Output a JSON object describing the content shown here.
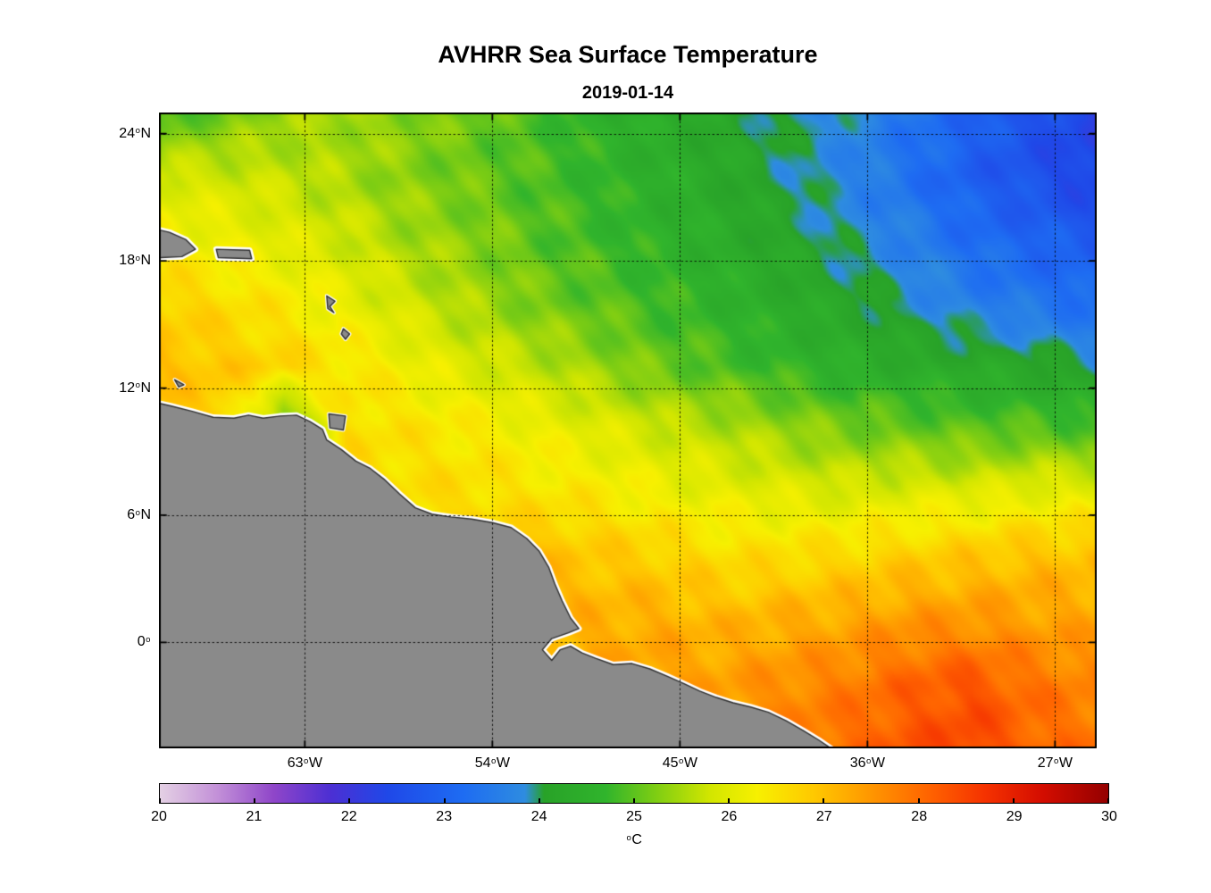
{
  "chart_data": {
    "type": "heatmap",
    "title": "AVHRR Sea Surface Temperature",
    "subtitle": "2019-01-14",
    "grid_on": true,
    "x_axis": {
      "range": [
        -70,
        -25
      ],
      "ticks": [
        {
          "deg": "63",
          "sup": "o",
          "hem": "W",
          "lon": -63
        },
        {
          "deg": "54",
          "sup": "o",
          "hem": "W",
          "lon": -54
        },
        {
          "deg": "45",
          "sup": "o",
          "hem": "W",
          "lon": -45
        },
        {
          "deg": "36",
          "sup": "o",
          "hem": "W",
          "lon": -36
        },
        {
          "deg": "27",
          "sup": "o",
          "hem": "W",
          "lon": -27
        }
      ]
    },
    "y_axis": {
      "range": [
        -5,
        25
      ],
      "ticks": [
        {
          "deg": "24",
          "sup": "o",
          "hem": "N",
          "lat": 24
        },
        {
          "deg": "18",
          "sup": "o",
          "hem": "N",
          "lat": 18
        },
        {
          "deg": "12",
          "sup": "o",
          "hem": "N",
          "lat": 12
        },
        {
          "deg": "6",
          "sup": "o",
          "hem": "N",
          "lat": 6
        },
        {
          "deg": "0",
          "sup": "o",
          "hem": "",
          "lat": 0
        }
      ]
    },
    "colorbar": {
      "orientation": "horizontal",
      "range": [
        20,
        30
      ],
      "unit_sup": "o",
      "unit_text": "C",
      "ticks": [
        "20",
        "21",
        "22",
        "23",
        "24",
        "25",
        "26",
        "27",
        "28",
        "29",
        "30"
      ],
      "stops": [
        {
          "v": 20.0,
          "c": "#E4D0E4"
        },
        {
          "v": 20.6,
          "c": "#C391D8"
        },
        {
          "v": 21.2,
          "c": "#8F46C9"
        },
        {
          "v": 21.8,
          "c": "#4C2FD3"
        },
        {
          "v": 22.4,
          "c": "#1F48E8"
        },
        {
          "v": 23.2,
          "c": "#1E6CF2"
        },
        {
          "v": 23.85,
          "c": "#2E8CE0"
        },
        {
          "v": 24.05,
          "c": "#28A228"
        },
        {
          "v": 24.7,
          "c": "#30B42C"
        },
        {
          "v": 25.2,
          "c": "#7ACC14"
        },
        {
          "v": 25.8,
          "c": "#D2E600"
        },
        {
          "v": 26.3,
          "c": "#F7F000"
        },
        {
          "v": 26.9,
          "c": "#FFC800"
        },
        {
          "v": 27.5,
          "c": "#FF9600"
        },
        {
          "v": 28.1,
          "c": "#FF6400"
        },
        {
          "v": 28.7,
          "c": "#F53200"
        },
        {
          "v": 29.3,
          "c": "#D40D00"
        },
        {
          "v": 30.0,
          "c": "#940000"
        }
      ]
    },
    "land_color": "#8A8A8A",
    "coast_outline": "#2E2E2E",
    "coast_halo": "#FFFFFF",
    "sst_grid": {
      "lons": [
        -70,
        -67,
        -64,
        -61,
        -58,
        -55,
        -52,
        -49,
        -46,
        -43,
        -40,
        -37,
        -34,
        -31,
        -28,
        -25
      ],
      "lats": [
        25,
        22,
        19,
        16,
        13,
        10,
        7,
        4,
        1,
        -2,
        -5
      ],
      "values": [
        [
          24.8,
          25.1,
          25.4,
          25.5,
          25.3,
          25.1,
          24.9,
          24.6,
          24.4,
          24.2,
          24.0,
          23.8,
          23.4,
          23.0,
          22.6,
          22.3
        ],
        [
          25.9,
          25.8,
          25.7,
          25.5,
          25.3,
          25.1,
          24.9,
          24.7,
          24.5,
          24.3,
          24.0,
          23.7,
          23.3,
          22.9,
          22.6,
          22.3
        ],
        [
          26.3,
          26.2,
          26.0,
          25.8,
          25.5,
          25.3,
          25.0,
          24.8,
          24.6,
          24.4,
          24.2,
          23.9,
          23.6,
          23.2,
          23.0,
          22.8
        ],
        [
          26.8,
          26.6,
          26.4,
          26.1,
          25.8,
          25.5,
          25.2,
          25.0,
          24.8,
          24.6,
          24.4,
          24.2,
          23.9,
          23.6,
          23.4,
          23.2
        ],
        [
          27.0,
          26.9,
          26.7,
          26.5,
          26.2,
          25.9,
          25.7,
          25.4,
          25.1,
          24.9,
          24.7,
          24.5,
          24.4,
          24.3,
          24.2,
          24.0
        ],
        [
          null,
          26.8,
          24.8,
          26.6,
          26.5,
          26.4,
          26.2,
          26.0,
          25.8,
          25.6,
          25.4,
          25.2,
          25.1,
          25.0,
          25.0,
          24.9
        ],
        [
          null,
          null,
          null,
          null,
          26.6,
          26.6,
          26.5,
          26.4,
          26.2,
          26.1,
          26.0,
          25.9,
          26.0,
          26.0,
          26.1,
          26.1
        ],
        [
          null,
          null,
          null,
          null,
          null,
          null,
          27.0,
          26.9,
          26.8,
          26.6,
          26.6,
          26.7,
          26.8,
          26.9,
          27.0,
          27.0
        ],
        [
          null,
          null,
          null,
          null,
          null,
          null,
          null,
          27.2,
          27.2,
          27.1,
          27.2,
          27.3,
          27.5,
          27.5,
          27.4,
          27.3
        ],
        [
          null,
          null,
          null,
          null,
          null,
          null,
          null,
          null,
          27.4,
          27.4,
          27.6,
          27.8,
          28.1,
          28.3,
          27.9,
          27.7
        ],
        [
          null,
          null,
          null,
          null,
          null,
          null,
          null,
          null,
          null,
          null,
          null,
          28.0,
          28.3,
          28.5,
          28.1,
          27.9
        ]
      ]
    },
    "land_polygons": [
      {
        "name": "south-america-mainland",
        "pts": [
          [
            -70.5,
            11.4
          ],
          [
            -69.4,
            11.15
          ],
          [
            -68.4,
            10.9
          ],
          [
            -67.4,
            10.62
          ],
          [
            -66.4,
            10.58
          ],
          [
            -65.7,
            10.72
          ],
          [
            -65.0,
            10.58
          ],
          [
            -64.2,
            10.68
          ],
          [
            -63.4,
            10.72
          ],
          [
            -62.75,
            10.42
          ],
          [
            -62.15,
            10.05
          ],
          [
            -61.95,
            9.55
          ],
          [
            -61.25,
            9.1
          ],
          [
            -60.55,
            8.55
          ],
          [
            -59.85,
            8.2
          ],
          [
            -59.2,
            7.7
          ],
          [
            -58.45,
            7.0
          ],
          [
            -57.7,
            6.35
          ],
          [
            -56.9,
            6.05
          ],
          [
            -56.0,
            5.92
          ],
          [
            -55.0,
            5.82
          ],
          [
            -54.0,
            5.65
          ],
          [
            -53.1,
            5.42
          ],
          [
            -52.35,
            4.9
          ],
          [
            -51.75,
            4.3
          ],
          [
            -51.3,
            3.55
          ],
          [
            -51.0,
            2.75
          ],
          [
            -50.65,
            1.95
          ],
          [
            -50.25,
            1.15
          ],
          [
            -49.85,
            0.65
          ],
          [
            -50.35,
            0.45
          ],
          [
            -51.15,
            0.18
          ],
          [
            -51.6,
            -0.35
          ],
          [
            -51.15,
            -0.85
          ],
          [
            -50.75,
            -0.35
          ],
          [
            -50.25,
            -0.18
          ],
          [
            -49.7,
            -0.5
          ],
          [
            -49.05,
            -0.75
          ],
          [
            -48.2,
            -1.05
          ],
          [
            -47.3,
            -1.0
          ],
          [
            -46.45,
            -1.25
          ],
          [
            -45.6,
            -1.6
          ],
          [
            -44.8,
            -1.95
          ],
          [
            -44.05,
            -2.3
          ],
          [
            -43.25,
            -2.6
          ],
          [
            -42.45,
            -2.85
          ],
          [
            -41.6,
            -3.05
          ],
          [
            -40.75,
            -3.3
          ],
          [
            -39.9,
            -3.7
          ],
          [
            -39.1,
            -4.15
          ],
          [
            -38.35,
            -4.6
          ],
          [
            -37.6,
            -5.1
          ],
          [
            -37.2,
            -5.6
          ],
          [
            -71,
            -6
          ]
        ]
      },
      {
        "name": "hispaniola",
        "pts": [
          [
            -70.6,
            19.6
          ],
          [
            -69.5,
            19.35
          ],
          [
            -68.7,
            19.0
          ],
          [
            -68.25,
            18.55
          ],
          [
            -68.9,
            18.2
          ],
          [
            -69.9,
            18.15
          ],
          [
            -70.6,
            18.3
          ]
        ]
      },
      {
        "name": "puerto-rico",
        "pts": [
          [
            -67.25,
            18.55
          ],
          [
            -65.65,
            18.5
          ],
          [
            -65.55,
            18.1
          ],
          [
            -67.15,
            18.15
          ]
        ]
      },
      {
        "name": "curacao",
        "pts": [
          [
            -69.25,
            12.4
          ],
          [
            -68.8,
            12.15
          ],
          [
            -69.05,
            12.05
          ]
        ]
      },
      {
        "name": "guadeloupe",
        "pts": [
          [
            -61.95,
            16.35
          ],
          [
            -61.55,
            16.1
          ],
          [
            -61.8,
            15.85
          ],
          [
            -61.6,
            15.55
          ],
          [
            -61.9,
            15.75
          ]
        ]
      },
      {
        "name": "martinique",
        "pts": [
          [
            -61.15,
            14.8
          ],
          [
            -60.85,
            14.55
          ],
          [
            -61.05,
            14.3
          ],
          [
            -61.25,
            14.55
          ]
        ]
      },
      {
        "name": "trinidad",
        "pts": [
          [
            -61.85,
            10.78
          ],
          [
            -61.05,
            10.68
          ],
          [
            -61.15,
            10.02
          ],
          [
            -61.8,
            10.12
          ]
        ]
      }
    ]
  }
}
